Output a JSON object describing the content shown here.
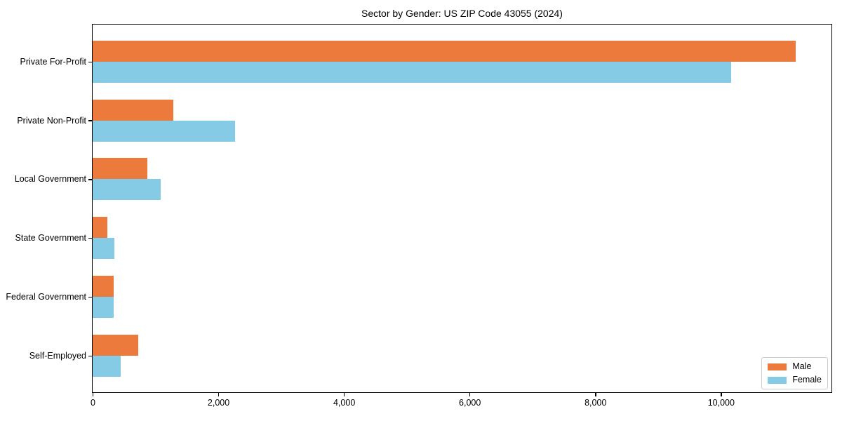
{
  "figure": {
    "background": "#ffffff",
    "spine_color": "#000000"
  },
  "chart_data": {
    "type": "bar",
    "orientation": "horizontal",
    "title": "Sector by Gender: US ZIP Code 43055 (2024)",
    "xlabel": "",
    "ylabel": "",
    "grid": false,
    "legend_position": "lower right",
    "categories": [
      "Private For-Profit",
      "Private Non-Profit",
      "Local Government",
      "State Government",
      "Federal Government",
      "Self-Employed"
    ],
    "series": [
      {
        "name": "Male",
        "color": "#EC7A3C",
        "values": [
          11190,
          1280,
          870,
          235,
          340,
          730
        ]
      },
      {
        "name": "Female",
        "color": "#85CBE6",
        "values": [
          10160,
          2270,
          1080,
          345,
          330,
          450
        ]
      }
    ],
    "xlim": [
      0,
      11750
    ],
    "x_ticks": [
      0,
      2000,
      4000,
      6000,
      8000,
      10000
    ],
    "x_tick_labels": [
      "0",
      "2,000",
      "4,000",
      "6,000",
      "8,000",
      "10,000"
    ]
  }
}
